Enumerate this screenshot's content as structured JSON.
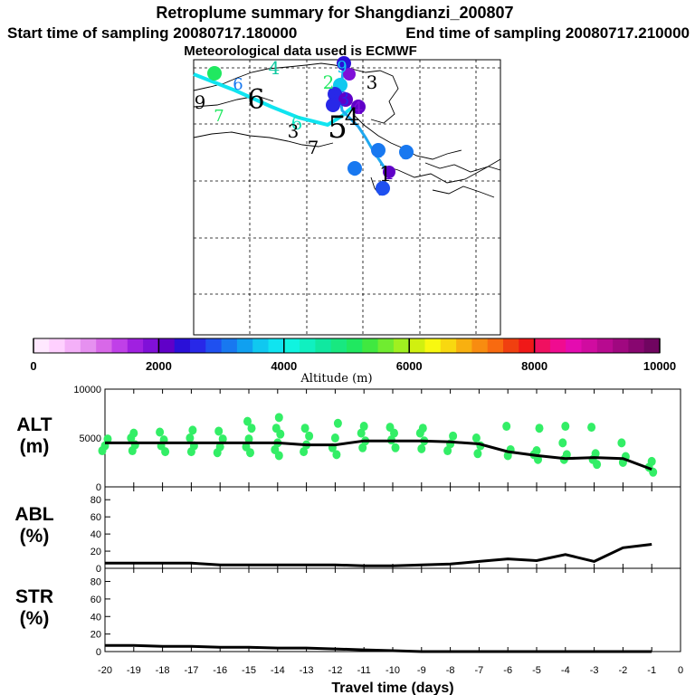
{
  "header": {
    "title": "Retroplume summary for Shangdianzi_200807",
    "start": "Start time of sampling 20080717.180000",
    "end": "End time of sampling 20080717.210000",
    "met": "Meteorological data used is ECMWF"
  },
  "colorbar": {
    "label": "Altitude (m)",
    "ticks": [
      "0",
      "2000",
      "4000",
      "6000",
      "8000",
      "10000"
    ],
    "colors": [
      "#ffe8ff",
      "#ffd0ff",
      "#f4b0f8",
      "#e690f0",
      "#d868e8",
      "#c040e8",
      "#a020e0",
      "#8010d8",
      "#6000c8",
      "#2a10d8",
      "#2828e8",
      "#1f50f0",
      "#1878f0",
      "#10a0f0",
      "#10c8f0",
      "#10e4f0",
      "#10f4e0",
      "#10f0c0",
      "#10e8a0",
      "#18e880",
      "#20e860",
      "#40e840",
      "#70ec30",
      "#a0f020",
      "#d0f010",
      "#f8f810",
      "#f8d810",
      "#f8b010",
      "#f88c10",
      "#f86a10",
      "#f04010",
      "#f01818",
      "#f01060",
      "#f00c90",
      "#e40cb0",
      "#d00ca0",
      "#b80a90",
      "#a00880",
      "#880670",
      "#700560"
    ]
  },
  "map": {
    "trajectory_color": "#10e4f0",
    "trajectory_color_2": "#1878f0",
    "labels": [
      {
        "text": "7",
        "color": "#20e860"
      },
      {
        "text": "4",
        "color": "#10c8a0"
      },
      {
        "text": "6",
        "color": "#1878f0"
      },
      {
        "text": "6",
        "color": "#000000"
      },
      {
        "text": "9",
        "color": "#000000"
      },
      {
        "text": "7",
        "color": "#20e860"
      },
      {
        "text": "9",
        "color": "#10c8f0"
      },
      {
        "text": "2",
        "color": "#20e860"
      },
      {
        "text": "3",
        "color": "#000000"
      },
      {
        "text": "2",
        "color": "#2828e8"
      },
      {
        "text": "3",
        "color": "#2828e8"
      },
      {
        "text": "4",
        "color": "#8010d8"
      },
      {
        "text": "5",
        "color": "#000000"
      },
      {
        "text": "4",
        "color": "#000000"
      },
      {
        "text": "6",
        "color": "#10e4c0"
      },
      {
        "text": "3",
        "color": "#000000"
      },
      {
        "text": "7",
        "color": "#000000"
      },
      {
        "text": "1",
        "color": "#1878f0"
      },
      {
        "text": "5",
        "color": "#1878f0"
      },
      {
        "text": "6",
        "color": "#1878f0"
      },
      {
        "text": "1",
        "color": "#6000c8"
      },
      {
        "text": "1",
        "color": "#000000"
      },
      {
        "text": "5",
        "color": "#1f50f0"
      }
    ]
  },
  "chart_data": [
    {
      "type": "scatter",
      "title": "ALT (m)",
      "ylabel": "ALT\n(m)",
      "ylim": [
        0,
        10000
      ],
      "xlim": [
        -20,
        0
      ],
      "yticks": [
        "10000",
        "5000",
        "0"
      ],
      "series": [
        {
          "name": "median altitude",
          "x": [
            -20,
            -19,
            -18,
            -17,
            -16,
            -15,
            -14,
            -13,
            -12,
            -11,
            -10,
            -9,
            -8,
            -7,
            -6,
            -5,
            -4,
            -3,
            -2,
            -1
          ],
          "values": [
            4500,
            4500,
            4500,
            4500,
            4500,
            4500,
            4500,
            4300,
            4300,
            4700,
            4700,
            4700,
            4600,
            4400,
            3600,
            3200,
            2900,
            3000,
            2900,
            1800
          ]
        },
        {
          "name": "particle altitudes",
          "points": [
            [
              -20,
              3700
            ],
            [
              -20,
              4200
            ],
            [
              -20,
              4900
            ],
            [
              -19,
              3700
            ],
            [
              -19,
              4300
            ],
            [
              -19,
              5000
            ],
            [
              -19,
              5500
            ],
            [
              -18,
              3600
            ],
            [
              -18,
              4200
            ],
            [
              -18,
              4800
            ],
            [
              -18,
              5600
            ],
            [
              -17,
              3600
            ],
            [
              -17,
              4200
            ],
            [
              -17,
              5000
            ],
            [
              -17,
              5800
            ],
            [
              -16,
              3500
            ],
            [
              -16,
              4100
            ],
            [
              -16,
              4900
            ],
            [
              -16,
              5700
            ],
            [
              -15,
              3500
            ],
            [
              -15,
              4100
            ],
            [
              -15,
              4900
            ],
            [
              -15,
              6000
            ],
            [
              -15,
              6700
            ],
            [
              -14,
              3200
            ],
            [
              -14,
              3800
            ],
            [
              -14,
              4500
            ],
            [
              -14,
              5400
            ],
            [
              -14,
              6000
            ],
            [
              -14,
              7100
            ],
            [
              -13,
              3600
            ],
            [
              -13,
              4300
            ],
            [
              -13,
              5200
            ],
            [
              -13,
              6000
            ],
            [
              -12,
              3300
            ],
            [
              -12,
              4000
            ],
            [
              -12,
              5000
            ],
            [
              -12,
              6500
            ],
            [
              -11,
              4000
            ],
            [
              -11,
              4700
            ],
            [
              -11,
              5500
            ],
            [
              -11,
              6200
            ],
            [
              -10,
              4000
            ],
            [
              -10,
              4800
            ],
            [
              -10,
              5500
            ],
            [
              -10,
              6100
            ],
            [
              -9,
              3900
            ],
            [
              -9,
              4700
            ],
            [
              -9,
              5500
            ],
            [
              -9,
              6000
            ],
            [
              -8,
              3700
            ],
            [
              -8,
              4400
            ],
            [
              -8,
              5200
            ],
            [
              -7,
              3400
            ],
            [
              -7,
              4200
            ],
            [
              -7,
              5000
            ],
            [
              -6,
              3200
            ],
            [
              -6,
              3800
            ],
            [
              -6,
              6200
            ],
            [
              -5,
              2800
            ],
            [
              -5,
              3300
            ],
            [
              -5,
              3700
            ],
            [
              -5,
              6000
            ],
            [
              -4,
              2800
            ],
            [
              -4,
              3300
            ],
            [
              -4,
              4500
            ],
            [
              -4,
              6200
            ],
            [
              -3,
              2300
            ],
            [
              -3,
              2800
            ],
            [
              -3,
              3400
            ],
            [
              -3,
              6100
            ],
            [
              -2,
              2500
            ],
            [
              -2,
              3100
            ],
            [
              -2,
              4500
            ],
            [
              -1,
              1500
            ],
            [
              -1,
              2000
            ],
            [
              -1,
              2600
            ]
          ]
        }
      ]
    },
    {
      "type": "line",
      "title": "ABL (%)",
      "ylabel": "ABL\n(%)",
      "ylim": [
        0,
        95
      ],
      "xlim": [
        -20,
        0
      ],
      "yticks": [
        "80",
        "60",
        "40",
        "20",
        "0"
      ],
      "x": [
        -20,
        -19,
        -18,
        -17,
        -16,
        -15,
        -14,
        -13,
        -12,
        -11,
        -10,
        -9,
        -8,
        -7,
        -6,
        -5,
        -4,
        -3,
        -2,
        -1
      ],
      "values": [
        6,
        6,
        6,
        6,
        4,
        4,
        4,
        4,
        4,
        3,
        3,
        4,
        5,
        8,
        11,
        9,
        16,
        8,
        24,
        28
      ]
    },
    {
      "type": "line",
      "title": "STR (%)",
      "ylabel": "STR\n(%)",
      "ylim": [
        0,
        95
      ],
      "xlim": [
        -20,
        0
      ],
      "yticks": [
        "80",
        "60",
        "40",
        "20",
        "0"
      ],
      "xticks": [
        "-20",
        "-19",
        "-18",
        "-17",
        "-16",
        "-15",
        "-14",
        "-13",
        "-12",
        "-11",
        "-10",
        "-9",
        "-8",
        "-7",
        "-6",
        "-5",
        "-4",
        "-3",
        "-2",
        "-1",
        "0"
      ],
      "xlabel": "Travel time (days)",
      "x": [
        -20,
        -19,
        -18,
        -17,
        -16,
        -15,
        -14,
        -13,
        -12,
        -11,
        -10,
        -9,
        -8,
        -7,
        -6,
        -5,
        -4,
        -3,
        -2,
        -1
      ],
      "values": [
        7,
        7,
        6,
        6,
        5,
        5,
        4,
        4,
        3,
        2,
        1,
        0,
        0,
        0,
        0,
        0,
        0,
        0,
        0,
        0
      ]
    }
  ]
}
